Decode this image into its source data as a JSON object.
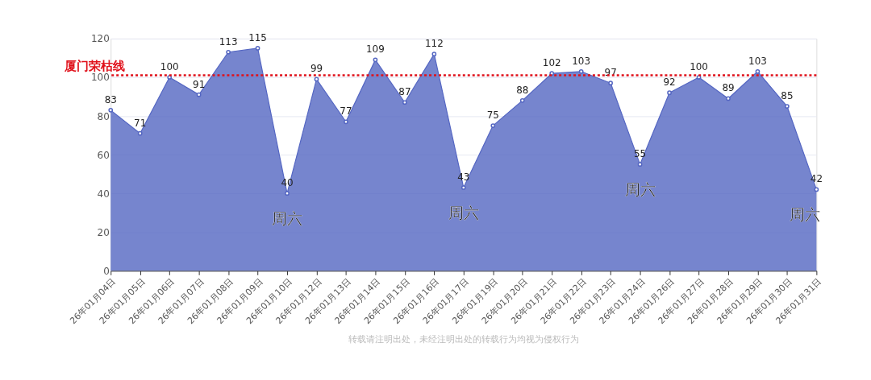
{
  "chart_data": {
    "type": "area",
    "categories": [
      "26年01月04日",
      "26年01月05日",
      "26年01月06日",
      "26年01月07日",
      "26年01月08日",
      "26年01月09日",
      "26年01月10日",
      "26年01月12日",
      "26年01月13日",
      "26年01月14日",
      "26年01月15日",
      "26年01月16日",
      "26年01月17日",
      "26年01月19日",
      "26年01月20日",
      "26年01月21日",
      "26年01月22日",
      "26年01月23日",
      "26年01月24日",
      "26年01月26日",
      "26年01月27日",
      "26年01月28日",
      "26年01月29日",
      "26年01月30日",
      "26年01月31日"
    ],
    "series": [
      {
        "color": "#5466c2",
        "values": [
          83,
          71,
          100,
          91,
          113,
          115,
          40,
          99,
          77,
          109,
          87,
          112,
          43,
          75,
          88,
          102,
          103,
          97,
          55,
          92,
          100,
          89,
          103,
          85,
          42
        ]
      }
    ],
    "ylim": [
      0,
      120
    ],
    "yticks": [
      0,
      20,
      40,
      60,
      80,
      100,
      120
    ],
    "grid": "y",
    "marker": "circle",
    "data_labels": true,
    "ref_lines": [
      {
        "axis": "y",
        "value": 101,
        "label": "厦门荣枯线",
        "color": "#e0101a",
        "line_style": "dotted"
      }
    ],
    "annotations": [
      {
        "text": "周六",
        "x": "26年01月10日",
        "y": 40
      },
      {
        "text": "周六",
        "x": "26年01月17日",
        "y": 43
      },
      {
        "text": "周六",
        "x": "26年01月24日",
        "y": 55
      },
      {
        "text": "周六",
        "x": "26年01月31日",
        "y": 42
      },
      "转载请注明出处，未经注明出处的转载行为均视为侵权行为"
    ]
  }
}
